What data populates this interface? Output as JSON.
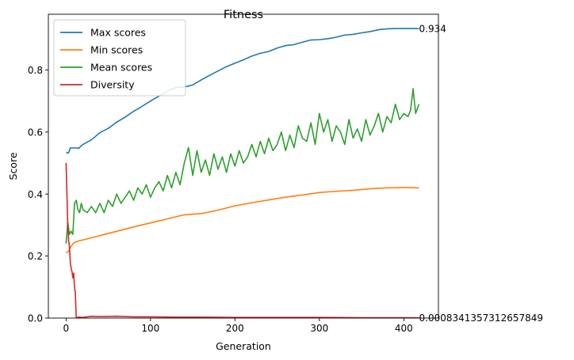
{
  "chart_data": {
    "type": "line",
    "title": "Fitness",
    "xlabel": "Generation",
    "ylabel": "Score",
    "xlim": [
      -21,
      441
    ],
    "ylim": [
      0.0,
      0.98
    ],
    "xticks": [
      0,
      100,
      200,
      300,
      400
    ],
    "yticks": [
      0.0,
      0.2,
      0.4,
      0.6,
      0.8
    ],
    "grid": false,
    "legend_position": "upper-left",
    "annotations": [
      {
        "text": "0.934",
        "x": 418,
        "y": 0.934
      },
      {
        "text": "0.0008341357312657849",
        "x": 418,
        "y": 0.0008
      }
    ],
    "series": [
      {
        "name": "Max scores",
        "color": "#1f77b4",
        "x": [
          0,
          3,
          5,
          10,
          15,
          20,
          30,
          40,
          50,
          60,
          70,
          80,
          90,
          100,
          110,
          120,
          130,
          140,
          150,
          160,
          170,
          180,
          190,
          200,
          210,
          220,
          230,
          240,
          250,
          260,
          270,
          280,
          290,
          300,
          310,
          320,
          330,
          340,
          350,
          360,
          370,
          380,
          390,
          400,
          410,
          418
        ],
        "values": [
          0.533,
          0.533,
          0.549,
          0.549,
          0.548,
          0.56,
          0.575,
          0.598,
          0.612,
          0.632,
          0.648,
          0.667,
          0.683,
          0.7,
          0.716,
          0.731,
          0.744,
          0.745,
          0.752,
          0.768,
          0.783,
          0.797,
          0.811,
          0.822,
          0.833,
          0.845,
          0.854,
          0.86,
          0.871,
          0.879,
          0.882,
          0.89,
          0.897,
          0.898,
          0.901,
          0.906,
          0.913,
          0.915,
          0.92,
          0.924,
          0.93,
          0.933,
          0.934,
          0.934,
          0.934,
          0.934
        ]
      },
      {
        "name": "Min scores",
        "color": "#ff7f0e",
        "x": [
          0,
          3,
          6,
          10,
          15,
          20,
          40,
          60,
          80,
          100,
          120,
          140,
          160,
          180,
          200,
          220,
          240,
          260,
          280,
          300,
          320,
          340,
          360,
          380,
          400,
          418
        ],
        "values": [
          0.211,
          0.215,
          0.232,
          0.244,
          0.249,
          0.252,
          0.266,
          0.28,
          0.294,
          0.307,
          0.32,
          0.333,
          0.337,
          0.348,
          0.362,
          0.372,
          0.381,
          0.39,
          0.397,
          0.405,
          0.409,
          0.412,
          0.417,
          0.42,
          0.421,
          0.42
        ]
      },
      {
        "name": "Mean scores",
        "color": "#2ca02c",
        "x": [
          0,
          2,
          4,
          6,
          8,
          10,
          12,
          14,
          16,
          18,
          20,
          25,
          30,
          35,
          40,
          45,
          50,
          55,
          60,
          65,
          70,
          75,
          80,
          85,
          90,
          95,
          100,
          105,
          110,
          115,
          120,
          125,
          130,
          135,
          140,
          145,
          150,
          155,
          160,
          165,
          170,
          175,
          180,
          185,
          190,
          195,
          200,
          205,
          210,
          215,
          220,
          225,
          230,
          235,
          240,
          245,
          250,
          255,
          260,
          265,
          270,
          275,
          280,
          285,
          290,
          295,
          300,
          305,
          310,
          315,
          320,
          325,
          330,
          335,
          340,
          345,
          350,
          355,
          360,
          365,
          370,
          375,
          380,
          385,
          390,
          395,
          400,
          405,
          408,
          411,
          414,
          418
        ],
        "values": [
          0.24,
          0.31,
          0.27,
          0.28,
          0.27,
          0.37,
          0.38,
          0.35,
          0.34,
          0.37,
          0.35,
          0.34,
          0.36,
          0.34,
          0.37,
          0.34,
          0.38,
          0.36,
          0.4,
          0.37,
          0.39,
          0.41,
          0.38,
          0.42,
          0.4,
          0.43,
          0.39,
          0.42,
          0.44,
          0.41,
          0.46,
          0.42,
          0.47,
          0.43,
          0.5,
          0.55,
          0.46,
          0.54,
          0.47,
          0.51,
          0.46,
          0.53,
          0.48,
          0.52,
          0.47,
          0.53,
          0.49,
          0.54,
          0.5,
          0.52,
          0.56,
          0.52,
          0.57,
          0.53,
          0.58,
          0.54,
          0.56,
          0.6,
          0.54,
          0.59,
          0.55,
          0.62,
          0.58,
          0.57,
          0.63,
          0.56,
          0.66,
          0.6,
          0.64,
          0.57,
          0.62,
          0.6,
          0.56,
          0.64,
          0.58,
          0.61,
          0.57,
          0.64,
          0.59,
          0.62,
          0.66,
          0.6,
          0.65,
          0.63,
          0.69,
          0.64,
          0.66,
          0.65,
          0.67,
          0.74,
          0.66,
          0.69
        ]
      },
      {
        "name": "Diversity",
        "color": "#d62728",
        "x": [
          0,
          1,
          2,
          3,
          4,
          5,
          6,
          7,
          8,
          9,
          10,
          11,
          12,
          13,
          15,
          20,
          30,
          40,
          60,
          80,
          100,
          130,
          160,
          200,
          250,
          300,
          350,
          400,
          418
        ],
        "values": [
          0.5,
          0.4,
          0.3,
          0.25,
          0.23,
          0.18,
          0.16,
          0.15,
          0.13,
          0.145,
          0.1,
          0.08,
          0.001,
          0.002,
          0.003,
          0.002,
          0.006,
          0.005,
          0.006,
          0.004,
          0.004,
          0.003,
          0.003,
          0.002,
          0.002,
          0.002,
          0.001,
          0.001,
          0.0008
        ]
      }
    ]
  }
}
